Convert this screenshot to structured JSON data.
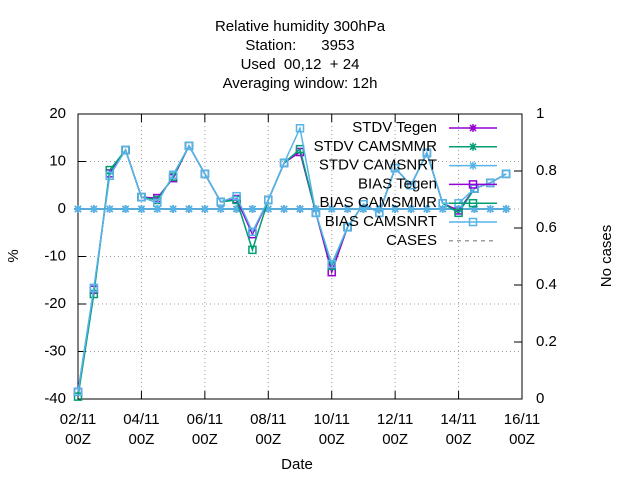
{
  "chart_data": {
    "type": "line",
    "title": [
      "Relative humidity 300hPa",
      "Station:      3953",
      "Used  00,12  + 24",
      "Averaging window: 12h"
    ],
    "xlabel": "Date",
    "ylabel": "%",
    "y2label": "No cases",
    "categories": [
      [
        "02/11",
        "00Z"
      ],
      null,
      null,
      null,
      [
        "04/11",
        "00Z"
      ],
      null,
      null,
      null,
      [
        "06/11",
        "00Z"
      ],
      null,
      null,
      null,
      [
        "08/11",
        "00Z"
      ],
      null,
      null,
      null,
      [
        "10/11",
        "00Z"
      ],
      null,
      null,
      null,
      [
        "12/11",
        "00Z"
      ],
      null,
      null,
      null,
      [
        "14/11",
        "00Z"
      ],
      null,
      null,
      null,
      [
        "16/11",
        "00Z"
      ]
    ],
    "ylim": [
      -40,
      20
    ],
    "yticks": [
      -40,
      -30,
      -20,
      -10,
      0,
      10,
      20
    ],
    "y2lim": [
      0,
      1
    ],
    "y2ticks": [
      0,
      0.2,
      0.4,
      0.6,
      0.8,
      1
    ],
    "grid": true,
    "legend": "upper right",
    "series": [
      {
        "name": "STDV Tegen",
        "color": "#9400d3",
        "marker": "star",
        "values": [
          0,
          0,
          0,
          0,
          0,
          0,
          0,
          0,
          0,
          0,
          0,
          0,
          0,
          0,
          0,
          0,
          0,
          0,
          0,
          0,
          0,
          0,
          0,
          0,
          0,
          0,
          0,
          0,
          null
        ]
      },
      {
        "name": "STDV CAMSMMR",
        "color": "#009e73",
        "marker": "star",
        "values": [
          0,
          0,
          0,
          0,
          0,
          0,
          0,
          0,
          0,
          0,
          0,
          0,
          0,
          0,
          0,
          0,
          0,
          0,
          0,
          0,
          0,
          0,
          0,
          0,
          0,
          0,
          0,
          0,
          null
        ]
      },
      {
        "name": "STDV CAMSNRT",
        "color": "#56b4e9",
        "marker": "star",
        "values": [
          0,
          0,
          0,
          0,
          0,
          0,
          0,
          0,
          0,
          0,
          0,
          0,
          0,
          0,
          0,
          0,
          0,
          0,
          0,
          0,
          0,
          0,
          0,
          0,
          0,
          0,
          0,
          0,
          null
        ]
      },
      {
        "name": "BIAS Tegen",
        "color": "#9400d3",
        "marker": "square",
        "values": [
          -38.5,
          -17,
          7.5,
          12.4,
          2.5,
          2.3,
          6.5,
          13.3,
          7.4,
          1.5,
          2.1,
          -5.3,
          1.9,
          9.7,
          12,
          -0.8,
          -13.3,
          -3.8,
          1,
          -0.8,
          8.6,
          5,
          11.8,
          1.2,
          -0.3,
          4.3,
          5.5,
          7.4,
          null
        ]
      },
      {
        "name": "BIAS CAMSMMR",
        "color": "#009e73",
        "marker": "square",
        "values": [
          -39.5,
          -17.9,
          8.2,
          12.4,
          2.5,
          1.9,
          6.8,
          13.3,
          7.4,
          1.5,
          1.9,
          -8.6,
          1.9,
          9.7,
          12.6,
          -0.8,
          -12,
          -3.8,
          1,
          -0.8,
          8.6,
          5,
          11.8,
          1.2,
          -0.8,
          4.3,
          5.5,
          7.4,
          null
        ]
      },
      {
        "name": "BIAS CAMSNRT",
        "color": "#56b4e9",
        "marker": "square",
        "values": [
          -38.5,
          -16.6,
          7,
          12.4,
          2.5,
          1.3,
          7.2,
          13.3,
          7.4,
          1.5,
          2.7,
          -4.8,
          1.9,
          9.7,
          17,
          -0.8,
          -11.6,
          -3.8,
          1,
          -0.8,
          8.6,
          5,
          11.8,
          1.2,
          1.2,
          4.3,
          5.5,
          7.4,
          null
        ]
      },
      {
        "name": "CASES",
        "color": "#a0a0a0",
        "marker": "none",
        "dash": true,
        "axis": "y2",
        "values": [
          null,
          null,
          null,
          null,
          null,
          null,
          null,
          null,
          null,
          null,
          null,
          null,
          null,
          null,
          null,
          null,
          null,
          null,
          null,
          null,
          null,
          null,
          null,
          null,
          null,
          null,
          null,
          null,
          null
        ]
      }
    ]
  }
}
